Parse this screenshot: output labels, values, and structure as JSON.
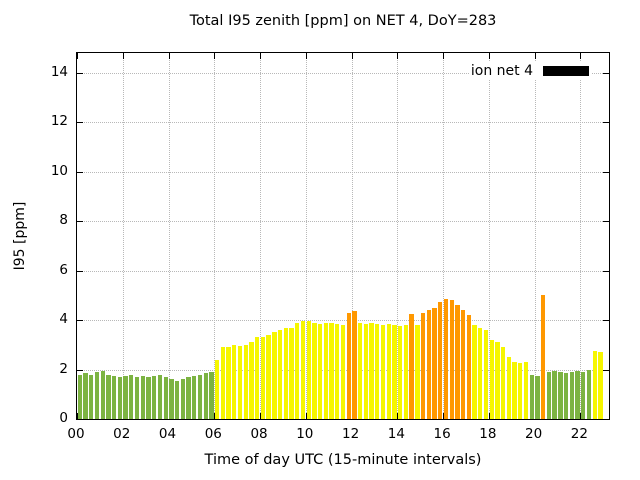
{
  "chart_data": {
    "type": "bar",
    "title": "Total I95 zenith [ppm] on NET 4, DoY=283",
    "xlabel": "Time of day UTC (15-minute intervals)",
    "ylabel": "I95 [ppm]",
    "xlim": [
      0,
      23.25
    ],
    "ylim": [
      0,
      14.8
    ],
    "x_ticks": [
      {
        "v": 0,
        "label": "00"
      },
      {
        "v": 2,
        "label": "02"
      },
      {
        "v": 4,
        "label": "04"
      },
      {
        "v": 6,
        "label": "06"
      },
      {
        "v": 8,
        "label": "08"
      },
      {
        "v": 10,
        "label": "10"
      },
      {
        "v": 12,
        "label": "12"
      },
      {
        "v": 14,
        "label": "14"
      },
      {
        "v": 16,
        "label": "16"
      },
      {
        "v": 18,
        "label": "18"
      },
      {
        "v": 20,
        "label": "20"
      },
      {
        "v": 22,
        "label": "22"
      }
    ],
    "y_ticks": [
      0,
      2,
      4,
      6,
      8,
      10,
      12,
      14
    ],
    "x_start": 0,
    "x_step": 0.25,
    "grid": true,
    "legend": {
      "label": "ion net 4",
      "swatch_color": "#000000",
      "position": "top-right"
    },
    "colors": {
      "low": "#7cb342",
      "mid": "#f6f600",
      "high": "#ff9800"
    },
    "thresholds": {
      "mid": 2.1,
      "high": 4.1
    },
    "values": [
      1.8,
      1.85,
      1.8,
      1.9,
      1.95,
      1.8,
      1.75,
      1.7,
      1.75,
      1.8,
      1.7,
      1.75,
      1.7,
      1.75,
      1.8,
      1.7,
      1.6,
      1.55,
      1.6,
      1.7,
      1.75,
      1.8,
      1.85,
      1.9,
      2.4,
      2.9,
      2.9,
      3.0,
      2.95,
      3.0,
      3.1,
      3.3,
      3.3,
      3.4,
      3.5,
      3.6,
      3.7,
      3.7,
      3.9,
      3.95,
      3.95,
      3.9,
      3.85,
      3.9,
      3.9,
      3.85,
      3.8,
      4.3,
      4.35,
      3.9,
      3.85,
      3.9,
      3.85,
      3.8,
      3.85,
      3.8,
      3.75,
      3.8,
      4.25,
      3.8,
      4.3,
      4.4,
      4.5,
      4.75,
      4.85,
      4.8,
      4.6,
      4.4,
      4.2,
      3.8,
      3.7,
      3.6,
      3.2,
      3.1,
      2.9,
      2.5,
      2.3,
      2.25,
      2.3,
      1.8,
      1.75,
      5.0,
      1.9,
      1.95,
      1.9,
      1.85,
      1.9,
      1.95,
      1.9,
      2.0,
      2.75,
      2.7
    ]
  }
}
